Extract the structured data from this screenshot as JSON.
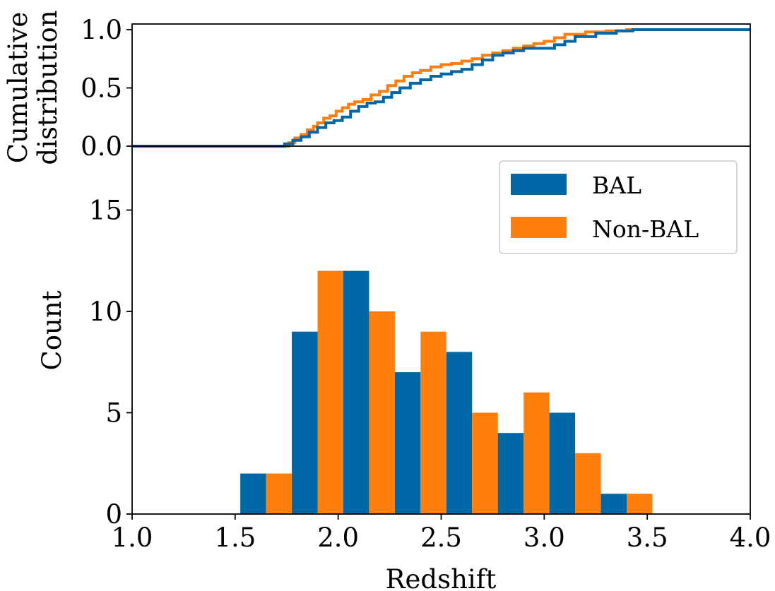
{
  "chart_data": [
    {
      "type": "line",
      "panel": "top",
      "step": true,
      "ylabel_lines": [
        "Cumulative",
        "distribution"
      ],
      "xlim": [
        1.0,
        4.0
      ],
      "ylim": [
        0.0,
        1.0
      ],
      "yticks": [
        0.0,
        0.5,
        1.0
      ],
      "ytick_labels": [
        "0.0",
        "0.5",
        "1.0"
      ],
      "grid": false,
      "series": [
        {
          "name": "Non-BAL",
          "color": "#ff7f0e",
          "x": [
            1.0,
            1.73,
            1.76,
            1.79,
            1.82,
            1.85,
            1.88,
            1.9,
            1.93,
            1.96,
            1.99,
            2.02,
            2.05,
            2.08,
            2.12,
            2.16,
            2.2,
            2.24,
            2.28,
            2.32,
            2.36,
            2.4,
            2.45,
            2.5,
            2.55,
            2.6,
            2.65,
            2.7,
            2.75,
            2.8,
            2.85,
            2.9,
            2.95,
            3.0,
            3.05,
            3.1,
            3.2,
            3.3,
            3.4,
            3.47,
            4.0
          ],
          "y": [
            0.0,
            0.0,
            0.03,
            0.07,
            0.1,
            0.14,
            0.17,
            0.2,
            0.24,
            0.26,
            0.3,
            0.33,
            0.36,
            0.38,
            0.4,
            0.44,
            0.47,
            0.52,
            0.56,
            0.6,
            0.63,
            0.65,
            0.68,
            0.7,
            0.71,
            0.73,
            0.75,
            0.78,
            0.8,
            0.82,
            0.84,
            0.86,
            0.88,
            0.9,
            0.93,
            0.96,
            0.98,
            0.99,
            1.0,
            1.0,
            1.0
          ]
        },
        {
          "name": "BAL",
          "color": "#0068a6",
          "x": [
            1.0,
            1.7,
            1.74,
            1.78,
            1.82,
            1.86,
            1.9,
            1.94,
            1.98,
            2.02,
            2.06,
            2.1,
            2.14,
            2.18,
            2.22,
            2.26,
            2.3,
            2.35,
            2.4,
            2.45,
            2.5,
            2.55,
            2.6,
            2.65,
            2.7,
            2.75,
            2.8,
            2.85,
            2.9,
            2.95,
            3.0,
            3.05,
            3.1,
            3.15,
            3.25,
            3.35,
            3.43,
            4.0
          ],
          "y": [
            0.0,
            0.0,
            0.02,
            0.05,
            0.08,
            0.12,
            0.16,
            0.2,
            0.22,
            0.25,
            0.3,
            0.34,
            0.37,
            0.38,
            0.42,
            0.46,
            0.5,
            0.54,
            0.57,
            0.6,
            0.62,
            0.64,
            0.66,
            0.7,
            0.74,
            0.78,
            0.8,
            0.82,
            0.84,
            0.84,
            0.84,
            0.87,
            0.9,
            0.94,
            0.97,
            0.99,
            1.0,
            1.0
          ]
        }
      ]
    },
    {
      "type": "bar",
      "panel": "bottom",
      "xlabel": "Redshift",
      "ylabel": "Count",
      "xlim": [
        1.0,
        4.0
      ],
      "ylim": [
        0,
        17.6
      ],
      "xticks": [
        1.0,
        1.5,
        2.0,
        2.5,
        3.0,
        3.5,
        4.0
      ],
      "xtick_labels": [
        "1.0",
        "1.5",
        "2.0",
        "2.5",
        "3.0",
        "3.5",
        "4.0"
      ],
      "yticks": [
        0,
        5,
        10,
        15
      ],
      "ytick_labels": [
        "0",
        "5",
        "10",
        "15"
      ],
      "bin_edges": [
        1.525,
        1.775,
        2.025,
        2.275,
        2.525,
        2.775,
        3.025,
        3.275,
        3.525
      ],
      "grid": false,
      "legend_position": "top-right",
      "series": [
        {
          "name": "BAL",
          "color": "#0068a6",
          "values": [
            2,
            9,
            12,
            7,
            8,
            4,
            5,
            1
          ]
        },
        {
          "name": "Non-BAL",
          "color": "#ff7f0e",
          "values": [
            2,
            12,
            10,
            9,
            5,
            6,
            3,
            1
          ]
        }
      ]
    }
  ]
}
